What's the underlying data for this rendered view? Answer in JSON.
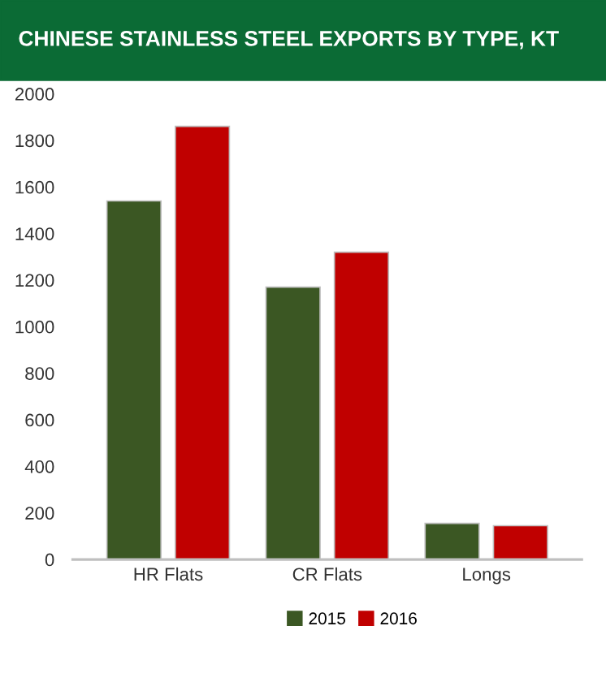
{
  "chart_data": {
    "type": "bar",
    "title": "CHINESE STAINLESS STEEL EXPORTS BY TYPE, KT",
    "categories": [
      "HR Flats",
      "CR Flats",
      "Longs"
    ],
    "series": [
      {
        "name": "2015",
        "color": "#3b5723",
        "values": [
          1540,
          1170,
          155
        ]
      },
      {
        "name": "2016",
        "color": "#c00000",
        "values": [
          1860,
          1320,
          145
        ]
      }
    ],
    "ylim": [
      0,
      2000
    ],
    "yticks": [
      0,
      200,
      400,
      600,
      800,
      1000,
      1200,
      1400,
      1600,
      1800,
      2000
    ],
    "grid": false,
    "legend": "bottom"
  }
}
